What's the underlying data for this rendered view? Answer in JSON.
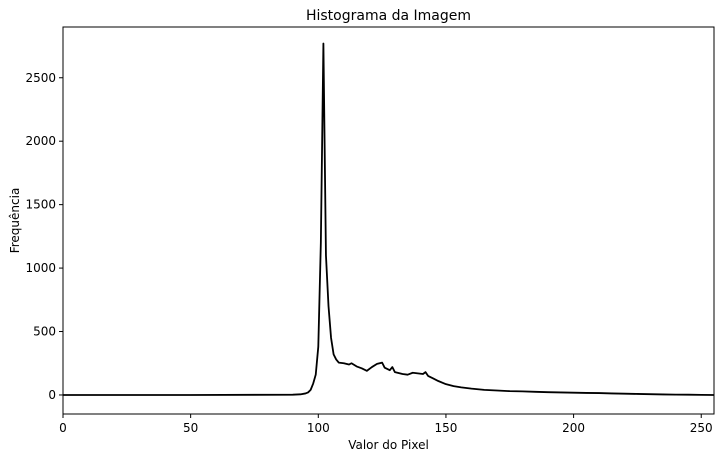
{
  "chart_data": {
    "type": "line",
    "title": "Histograma da Imagem",
    "xlabel": "Valor do Pixel",
    "ylabel": "Frequência",
    "xlim": [
      0,
      255
    ],
    "ylim": [
      -150,
      2900
    ],
    "xticks": [
      0,
      50,
      100,
      150,
      200,
      250
    ],
    "yticks": [
      0,
      500,
      1000,
      1500,
      2000,
      2500
    ],
    "grid": false,
    "legend": "none",
    "line_color": "#000000",
    "series": [
      {
        "x": [
          0,
          50,
          90,
          93,
          95,
          96,
          97,
          98,
          99,
          100,
          101,
          102,
          103,
          104,
          105,
          106,
          107,
          108,
          110,
          112,
          113,
          115,
          117,
          119,
          121,
          123,
          125,
          126,
          128,
          129,
          130,
          131,
          133,
          135,
          137,
          139,
          141,
          142,
          143,
          145,
          147,
          150,
          153,
          156,
          160,
          165,
          170,
          175,
          180,
          185,
          190,
          195,
          200,
          205,
          210,
          215,
          220,
          225,
          230,
          235,
          240,
          245,
          250,
          255
        ],
        "y": [
          0,
          0,
          2,
          5,
          12,
          20,
          40,
          90,
          160,
          380,
          1200,
          2770,
          1100,
          700,
          450,
          320,
          280,
          255,
          250,
          240,
          250,
          225,
          210,
          190,
          220,
          245,
          255,
          215,
          195,
          220,
          180,
          175,
          165,
          160,
          175,
          170,
          165,
          180,
          150,
          130,
          110,
          85,
          70,
          60,
          50,
          40,
          35,
          30,
          28,
          25,
          22,
          20,
          18,
          16,
          15,
          12,
          10,
          8,
          6,
          4,
          3,
          2,
          1,
          0
        ]
      }
    ]
  }
}
